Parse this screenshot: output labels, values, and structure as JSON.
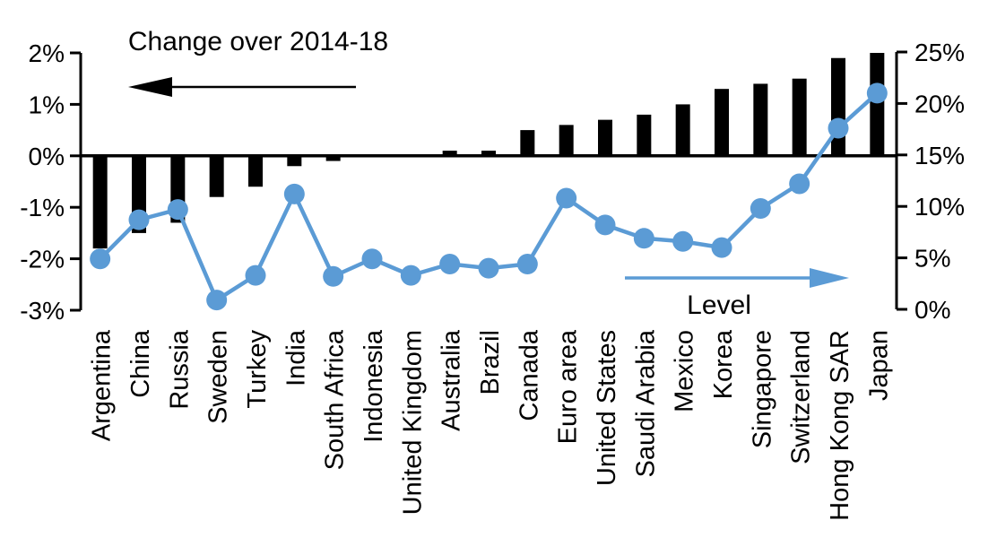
{
  "chart_data": {
    "type": "combo",
    "subtypes": [
      "bar",
      "line"
    ],
    "title_left": "Change over 2014-18",
    "title_right": "Level",
    "grid": false,
    "legend_position": "in-plot annotations with arrows",
    "categories": [
      "Argentina",
      "China",
      "Russia",
      "Sweden",
      "Turkey",
      "India",
      "South Africa",
      "Indonesia",
      "United Kingdom",
      "Australia",
      "Brazil",
      "Canada",
      "Euro area",
      "United States",
      "Saudi Arabia",
      "Mexico",
      "Korea",
      "Singapore",
      "Switzerland",
      "Hong Kong SAR",
      "Japan"
    ],
    "series": [
      {
        "name": "Change over 2014-18",
        "type": "bar",
        "axis": "left",
        "color": "#000000",
        "values": [
          -1.8,
          -1.5,
          -1.3,
          -0.8,
          -0.6,
          -0.2,
          -0.1,
          0.0,
          0.0,
          0.1,
          0.1,
          0.5,
          0.6,
          0.7,
          0.8,
          1.0,
          1.3,
          1.4,
          1.5,
          1.9,
          2.0
        ]
      },
      {
        "name": "Level",
        "type": "line",
        "axis": "right",
        "color": "#5B9BD5",
        "values": [
          4.9,
          8.7,
          9.7,
          0.9,
          3.3,
          11.2,
          3.2,
          4.9,
          3.3,
          4.4,
          4.0,
          4.4,
          10.8,
          8.2,
          6.9,
          6.6,
          6.0,
          9.8,
          12.2,
          17.6,
          21.0
        ]
      }
    ],
    "left_axis": {
      "side": "left",
      "min": -3,
      "max": 2,
      "tick_values": [
        2,
        1,
        0,
        -1,
        -2,
        -3
      ],
      "tick_labels": [
        "2%",
        "1%",
        "0%",
        "-1%",
        "-2%",
        "-3%"
      ]
    },
    "right_axis": {
      "side": "right",
      "min": 0,
      "max": 25,
      "tick_values": [
        25,
        20,
        15,
        10,
        5,
        0
      ],
      "tick_labels": [
        "25%",
        "20%",
        "15%",
        "10%",
        "5%",
        "0%"
      ]
    }
  },
  "colors": {
    "bar": "#000000",
    "line": "#5B9BD5",
    "axis": "#000000",
    "background": "#ffffff"
  }
}
